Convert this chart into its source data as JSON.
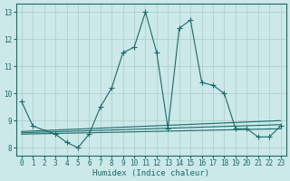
{
  "xlabel": "Humidex (Indice chaleur)",
  "ylabel": "",
  "xlim": [
    -0.5,
    23.5
  ],
  "ylim": [
    7.7,
    13.3
  ],
  "yticks": [
    8,
    9,
    10,
    11,
    12,
    13
  ],
  "xticks": [
    0,
    1,
    2,
    3,
    4,
    5,
    6,
    7,
    8,
    9,
    10,
    11,
    12,
    13,
    14,
    15,
    16,
    17,
    18,
    19,
    20,
    21,
    22,
    23
  ],
  "background_color": "#cce8e8",
  "line_color": "#1a6b6b",
  "grid_color": "#aacccc",
  "main_line": {
    "x": [
      0,
      1,
      3,
      4,
      5,
      6,
      7,
      8,
      9,
      10,
      11,
      12,
      13,
      14,
      15,
      16,
      17,
      18,
      19,
      20,
      21,
      22,
      23
    ],
    "y": [
      9.7,
      8.8,
      8.5,
      8.2,
      8.0,
      8.5,
      9.5,
      10.2,
      11.5,
      11.7,
      13.0,
      11.5,
      8.7,
      12.4,
      12.7,
      10.4,
      10.3,
      10.0,
      8.7,
      8.7,
      8.4,
      8.4,
      8.8
    ]
  },
  "flat_lines": [
    {
      "x": [
        0,
        23
      ],
      "y": [
        8.6,
        9.0
      ]
    },
    {
      "x": [
        0,
        23
      ],
      "y": [
        8.55,
        8.85
      ]
    },
    {
      "x": [
        0,
        23
      ],
      "y": [
        8.5,
        8.7
      ]
    }
  ]
}
